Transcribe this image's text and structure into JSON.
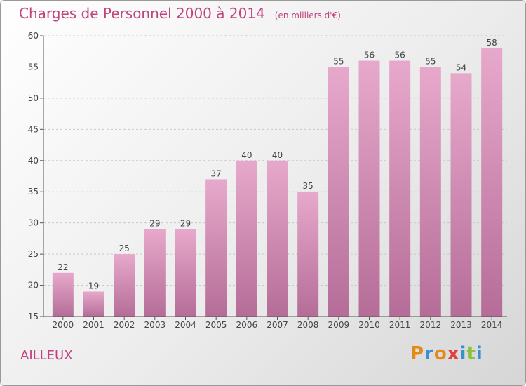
{
  "title": "Charges de Personnel 2000 à 2014",
  "subtitle": "(en milliers d'€)",
  "commune": "AILLEUX",
  "logo": {
    "text": "Proxiti",
    "colors": [
      "#e48a1a",
      "#3a8fd0",
      "#e48a1a",
      "#e2403f",
      "#3a8fd0",
      "#8bc140",
      "#3a8fd0"
    ]
  },
  "colors": {
    "title": "#c0427e",
    "bar_top": "#e7a9cb",
    "bar_bottom": "#b56d98"
  },
  "chart_data": {
    "type": "bar",
    "title": "Charges de Personnel 2000 à 2014",
    "subtitle": "(en milliers d'€)",
    "categories": [
      "2000",
      "2001",
      "2002",
      "2003",
      "2004",
      "2005",
      "2006",
      "2007",
      "2008",
      "2009",
      "2010",
      "2011",
      "2012",
      "2013",
      "2014"
    ],
    "values": [
      22,
      19,
      25,
      29,
      29,
      37,
      40,
      40,
      35,
      55,
      56,
      56,
      55,
      54,
      58
    ],
    "ylim": [
      15,
      60
    ],
    "yticks": [
      15,
      20,
      25,
      30,
      35,
      40,
      45,
      50,
      55,
      60
    ],
    "grid": true,
    "xlabel": "",
    "ylabel": ""
  }
}
